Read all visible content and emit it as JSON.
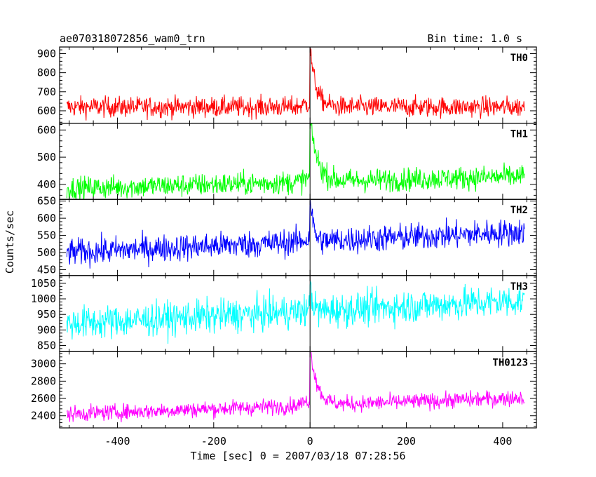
{
  "chart_data": {
    "type": "line",
    "title": "ae070318072856_wam0_trn",
    "bin_time_label": "Bin time: 1.0 s",
    "xlabel": "Time [sec] 0 = 2007/03/18 07:28:56",
    "ylabel": "Counts/sec",
    "x_range": [
      -520,
      470
    ],
    "x_ticks": [
      -400,
      -200,
      0,
      200,
      400
    ],
    "x_start": -505,
    "x_end": 445,
    "burst_time": 0,
    "marker_line_x": 0,
    "panels": [
      {
        "label": "TH0",
        "color": "#ff0000",
        "ylim": [
          535,
          935
        ],
        "yticks": [
          600,
          700,
          800,
          900
        ],
        "baseline_start": 620,
        "baseline_end": 620,
        "noise": 38,
        "pre_rise": 20,
        "peak": 930,
        "decay_tau": 12
      },
      {
        "label": "TH1",
        "color": "#00ff00",
        "ylim": [
          345,
          625
        ],
        "yticks": [
          400,
          500,
          600
        ],
        "baseline_start": 385,
        "baseline_end": 430,
        "noise": 30,
        "pre_rise": 15,
        "peak": 620,
        "decay_tau": 15
      },
      {
        "label": "TH2",
        "color": "#0000ff",
        "ylim": [
          433,
          655
        ],
        "yticks": [
          450,
          500,
          550,
          600,
          650
        ],
        "baseline_start": 500,
        "baseline_end": 560,
        "noise": 28,
        "pre_rise": 10,
        "peak": 650,
        "decay_tau": 6
      },
      {
        "label": "TH3",
        "color": "#00ffff",
        "ylim": [
          830,
          1075
        ],
        "yticks": [
          850,
          900,
          950,
          1000,
          1050
        ],
        "baseline_start": 920,
        "baseline_end": 995,
        "noise": 38,
        "pre_rise": 5,
        "peak": 1040,
        "decay_tau": 4
      },
      {
        "label": "TH0123",
        "color": "#ff00ff",
        "ylim": [
          2260,
          3140
        ],
        "yticks": [
          2400,
          2600,
          2800,
          3000
        ],
        "baseline_start": 2420,
        "baseline_end": 2610,
        "noise": 65,
        "pre_rise": 60,
        "peak": 3130,
        "decay_tau": 14
      }
    ]
  }
}
